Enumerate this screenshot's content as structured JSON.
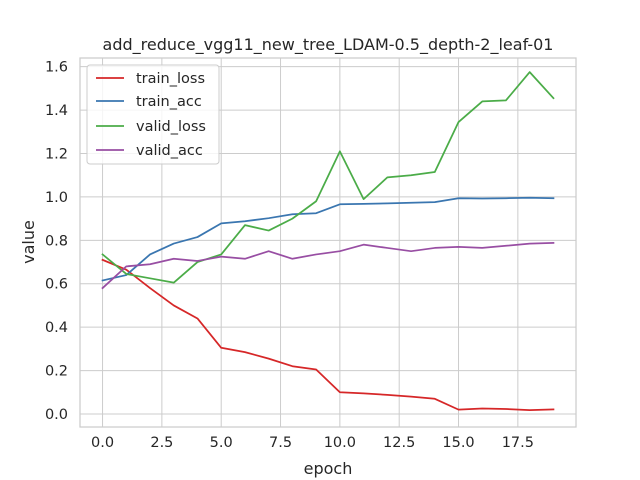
{
  "chart_data": {
    "type": "line",
    "title": "add_reduce_vgg11_new_tree_LDAM-0.5_depth-2_leaf-01",
    "xlabel": "epoch",
    "ylabel": "value",
    "xlim": [
      -0.95,
      19.95
    ],
    "ylim": [
      -0.06,
      1.64
    ],
    "grid": true,
    "legend_position": "top-left",
    "x": [
      0,
      1,
      2,
      3,
      4,
      5,
      6,
      7,
      8,
      9,
      10,
      11,
      12,
      13,
      14,
      15,
      16,
      17,
      18,
      19
    ],
    "xticks": [
      0.0,
      2.5,
      5.0,
      7.5,
      10.0,
      12.5,
      15.0,
      17.5
    ],
    "xtick_labels": [
      "0.0",
      "2.5",
      "5.0",
      "7.5",
      "10.0",
      "12.5",
      "15.0",
      "17.5"
    ],
    "yticks": [
      0.0,
      0.2,
      0.4,
      0.6,
      0.8,
      1.0,
      1.2,
      1.4,
      1.6
    ],
    "ytick_labels": [
      "0.0",
      "0.2",
      "0.4",
      "0.6",
      "0.8",
      "1.0",
      "1.2",
      "1.4",
      "1.6"
    ],
    "series": [
      {
        "name": "train_loss",
        "color": "#d62728",
        "values": [
          0.71,
          0.665,
          0.58,
          0.5,
          0.44,
          0.305,
          0.285,
          0.255,
          0.22,
          0.205,
          0.1,
          0.095,
          0.088,
          0.08,
          0.07,
          0.02,
          0.025,
          0.023,
          0.018,
          0.021
        ]
      },
      {
        "name": "train_acc",
        "color": "#3a76b0",
        "values": [
          0.615,
          0.64,
          0.735,
          0.785,
          0.815,
          0.878,
          0.888,
          0.902,
          0.92,
          0.925,
          0.966,
          0.968,
          0.97,
          0.973,
          0.976,
          0.994,
          0.993,
          0.994,
          0.996,
          0.994
        ]
      },
      {
        "name": "valid_loss",
        "color": "#4bac48",
        "values": [
          0.735,
          0.645,
          0.625,
          0.605,
          0.7,
          0.735,
          0.87,
          0.845,
          0.9,
          0.98,
          1.21,
          0.99,
          1.09,
          1.1,
          1.115,
          1.345,
          1.44,
          1.445,
          1.575,
          1.455
        ]
      },
      {
        "name": "valid_acc",
        "color": "#984ea3",
        "values": [
          0.58,
          0.68,
          0.69,
          0.715,
          0.705,
          0.725,
          0.715,
          0.75,
          0.715,
          0.735,
          0.75,
          0.78,
          0.765,
          0.75,
          0.765,
          0.77,
          0.765,
          0.775,
          0.785,
          0.788
        ]
      }
    ]
  }
}
